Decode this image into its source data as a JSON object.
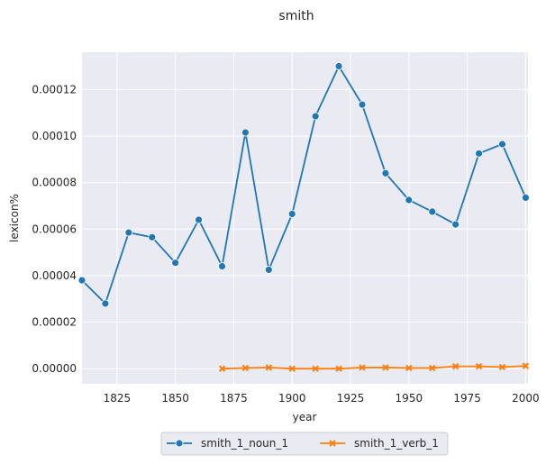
{
  "chart_data": {
    "type": "line",
    "title": "smith",
    "xlabel": "year",
    "ylabel": "lexicon%",
    "xlim": [
      1810,
      2001
    ],
    "ylim": [
      -6.5e-06,
      0.000136
    ],
    "x_ticks": [
      1825,
      1850,
      1875,
      1900,
      1925,
      1950,
      1975,
      2000
    ],
    "x_tick_labels": [
      "1825",
      "1850",
      "1875",
      "1900",
      "1925",
      "1950",
      "1975",
      "2000"
    ],
    "y_ticks": [
      0,
      2e-05,
      4e-05,
      6e-05,
      8e-05,
      0.0001,
      0.00012
    ],
    "y_tick_labels": [
      "0.00000",
      "0.00002",
      "0.00004",
      "0.00006",
      "0.00008",
      "0.00010",
      "0.00012"
    ],
    "grid": true,
    "legend_placement": "bottom-center",
    "series": [
      {
        "name": "smith_1_noun_1",
        "color": "#1f77b4",
        "marker": "circle",
        "x": [
          1810,
          1820,
          1830,
          1840,
          1850,
          1860,
          1870,
          1880,
          1890,
          1900,
          1910,
          1920,
          1930,
          1940,
          1950,
          1960,
          1970,
          1980,
          1990,
          2000
        ],
        "y": [
          3.8e-05,
          2.8e-05,
          5.85e-05,
          5.65e-05,
          4.55e-05,
          6.4e-05,
          4.4e-05,
          0.0001015,
          4.25e-05,
          6.65e-05,
          0.0001085,
          0.00013,
          0.0001135,
          8.4e-05,
          7.25e-05,
          6.75e-05,
          6.2e-05,
          9.25e-05,
          9.65e-05,
          7.35e-05
        ]
      },
      {
        "name": "smith_1_verb_1",
        "color": "#ff7f0e",
        "marker": "x",
        "x": [
          1870,
          1880,
          1890,
          1900,
          1910,
          1920,
          1930,
          1940,
          1950,
          1960,
          1970,
          1980,
          1990,
          2000
        ],
        "y": [
          0.0,
          3e-07,
          5e-07,
          0.0,
          0.0,
          0.0,
          5e-07,
          5e-07,
          3e-07,
          3e-07,
          1e-06,
          1e-06,
          7e-07,
          1.2e-06
        ]
      }
    ]
  }
}
